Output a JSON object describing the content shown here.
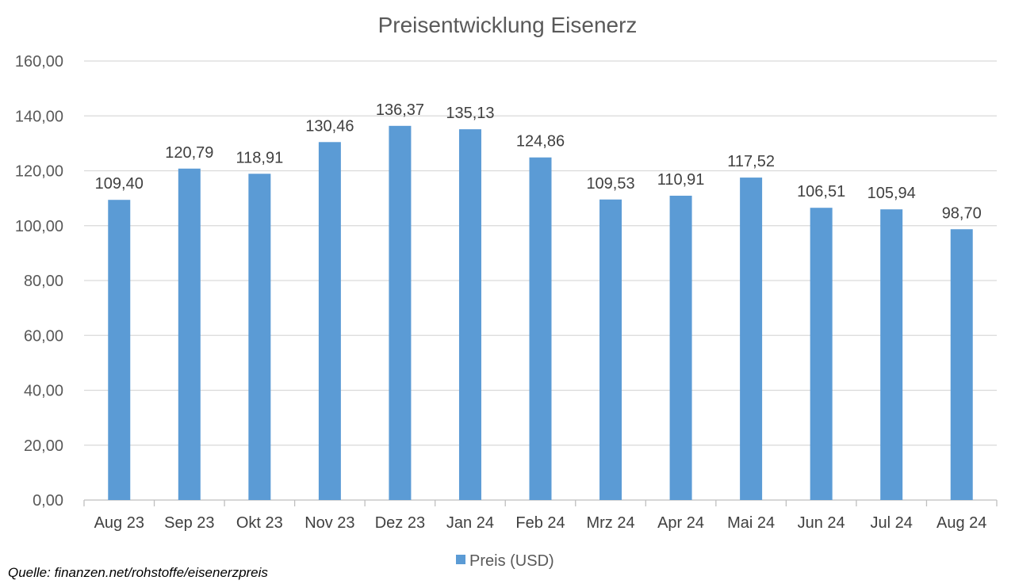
{
  "colors": {
    "bar": "#5B9BD5",
    "grid": "#D9D9D9",
    "axis": "#BFBFBF"
  },
  "source": "Quelle: finanzen.net/rohstoffe/eisenerzpreis",
  "chart_data": {
    "type": "bar",
    "title": "Preisentwicklung Eisenerz",
    "xlabel": "",
    "ylabel": "",
    "categories": [
      "Aug 23",
      "Sep 23",
      "Okt 23",
      "Nov 23",
      "Dez 23",
      "Jan 24",
      "Feb 24",
      "Mrz 24",
      "Apr 24",
      "Mai 24",
      "Jun 24",
      "Jul 24",
      "Aug 24"
    ],
    "series": [
      {
        "name": "Preis (USD)",
        "values": [
          109.4,
          120.79,
          118.91,
          130.46,
          136.37,
          135.13,
          124.86,
          109.53,
          110.91,
          117.52,
          106.51,
          105.94,
          98.7
        ],
        "labels": [
          "109,40",
          "120,79",
          "118,91",
          "130,46",
          "136,37",
          "135,13",
          "124,86",
          "109,53",
          "110,91",
          "117,52",
          "106,51",
          "105,94",
          "98,70"
        ]
      }
    ],
    "ylim": [
      0,
      160
    ],
    "yticks": [
      "0,00",
      "20,00",
      "40,00",
      "60,00",
      "80,00",
      "100,00",
      "120,00",
      "140,00",
      "160,00"
    ],
    "grid": true,
    "legend": "bottom"
  }
}
